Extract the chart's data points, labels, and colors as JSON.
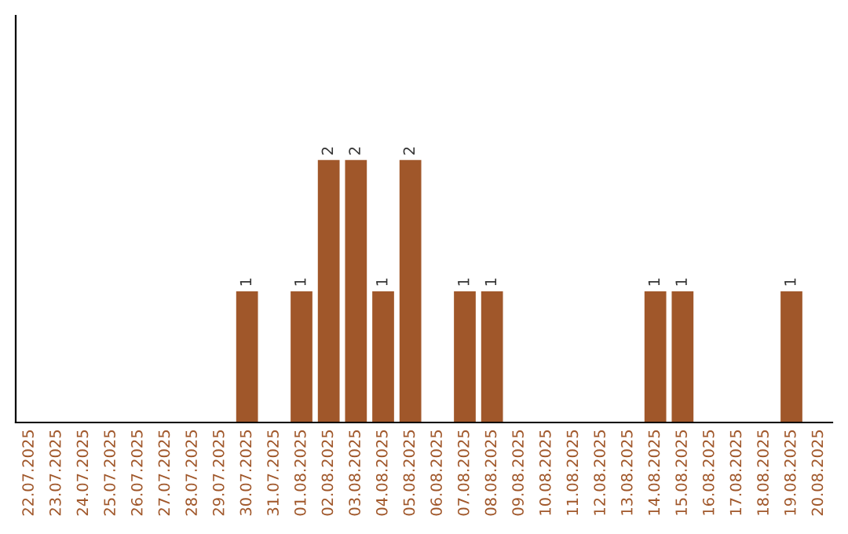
{
  "chart_data": {
    "type": "bar",
    "categories": [
      "22.07.2025",
      "23.07.2025",
      "24.07.2025",
      "25.07.2025",
      "26.07.2025",
      "27.07.2025",
      "28.07.2025",
      "29.07.2025",
      "30.07.2025",
      "31.07.2025",
      "01.08.2025",
      "02.08.2025",
      "03.08.2025",
      "04.08.2025",
      "05.08.2025",
      "06.08.2025",
      "07.08.2025",
      "08.08.2025",
      "09.08.2025",
      "10.08.2025",
      "11.08.2025",
      "12.08.2025",
      "13.08.2025",
      "14.08.2025",
      "15.08.2025",
      "16.08.2025",
      "17.08.2025",
      "18.08.2025",
      "19.08.2025",
      "20.08.2025"
    ],
    "values": [
      0,
      0,
      0,
      0,
      0,
      0,
      0,
      0,
      1,
      0,
      1,
      2,
      2,
      1,
      2,
      0,
      1,
      1,
      0,
      0,
      0,
      0,
      0,
      1,
      1,
      0,
      0,
      0,
      1,
      0
    ],
    "value_labels": [
      null,
      null,
      null,
      null,
      null,
      null,
      null,
      null,
      "1",
      null,
      "1",
      "2",
      "2",
      "1",
      "2",
      null,
      "1",
      "1",
      null,
      null,
      null,
      null,
      null,
      "1",
      "1",
      null,
      null,
      null,
      "1",
      null
    ],
    "color": "#a0572a",
    "ylim": [
      0,
      3.1
    ],
    "tick_labels": "x",
    "grid": false,
    "legend": false
  }
}
